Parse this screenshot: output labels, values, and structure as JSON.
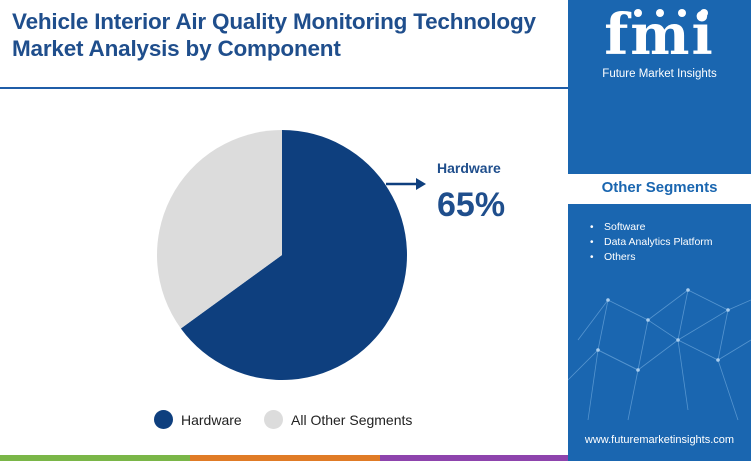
{
  "title": "Vehicle Interior Air Quality Monitoring Technology Market Analysis by Component",
  "chart_data": {
    "type": "pie",
    "categories": [
      "Hardware",
      "All Other Segments"
    ],
    "values": [
      65,
      35
    ],
    "colors": [
      "#0e3f7e",
      "#dcdcdc"
    ],
    "legend_position": "bottom",
    "callout": {
      "label": "Hardware",
      "value": "65%"
    }
  },
  "legend": {
    "items": [
      {
        "label": "Hardware",
        "color": "#0e3f7e"
      },
      {
        "label": "All Other Segments",
        "color": "#dcdcdc"
      }
    ]
  },
  "sidebar": {
    "logo_text": "fmi",
    "logo_subtitle": "Future Market Insights",
    "panel_title": "Other Segments",
    "segments": [
      "Software",
      "Data Analytics Platform",
      "Others"
    ],
    "website": "www.futuremarketinsights.com",
    "background": "#1a66b0"
  },
  "bottom_bar_colors": [
    "#7ab648",
    "#e07b26",
    "#8e44ad",
    "#1a66b0"
  ]
}
